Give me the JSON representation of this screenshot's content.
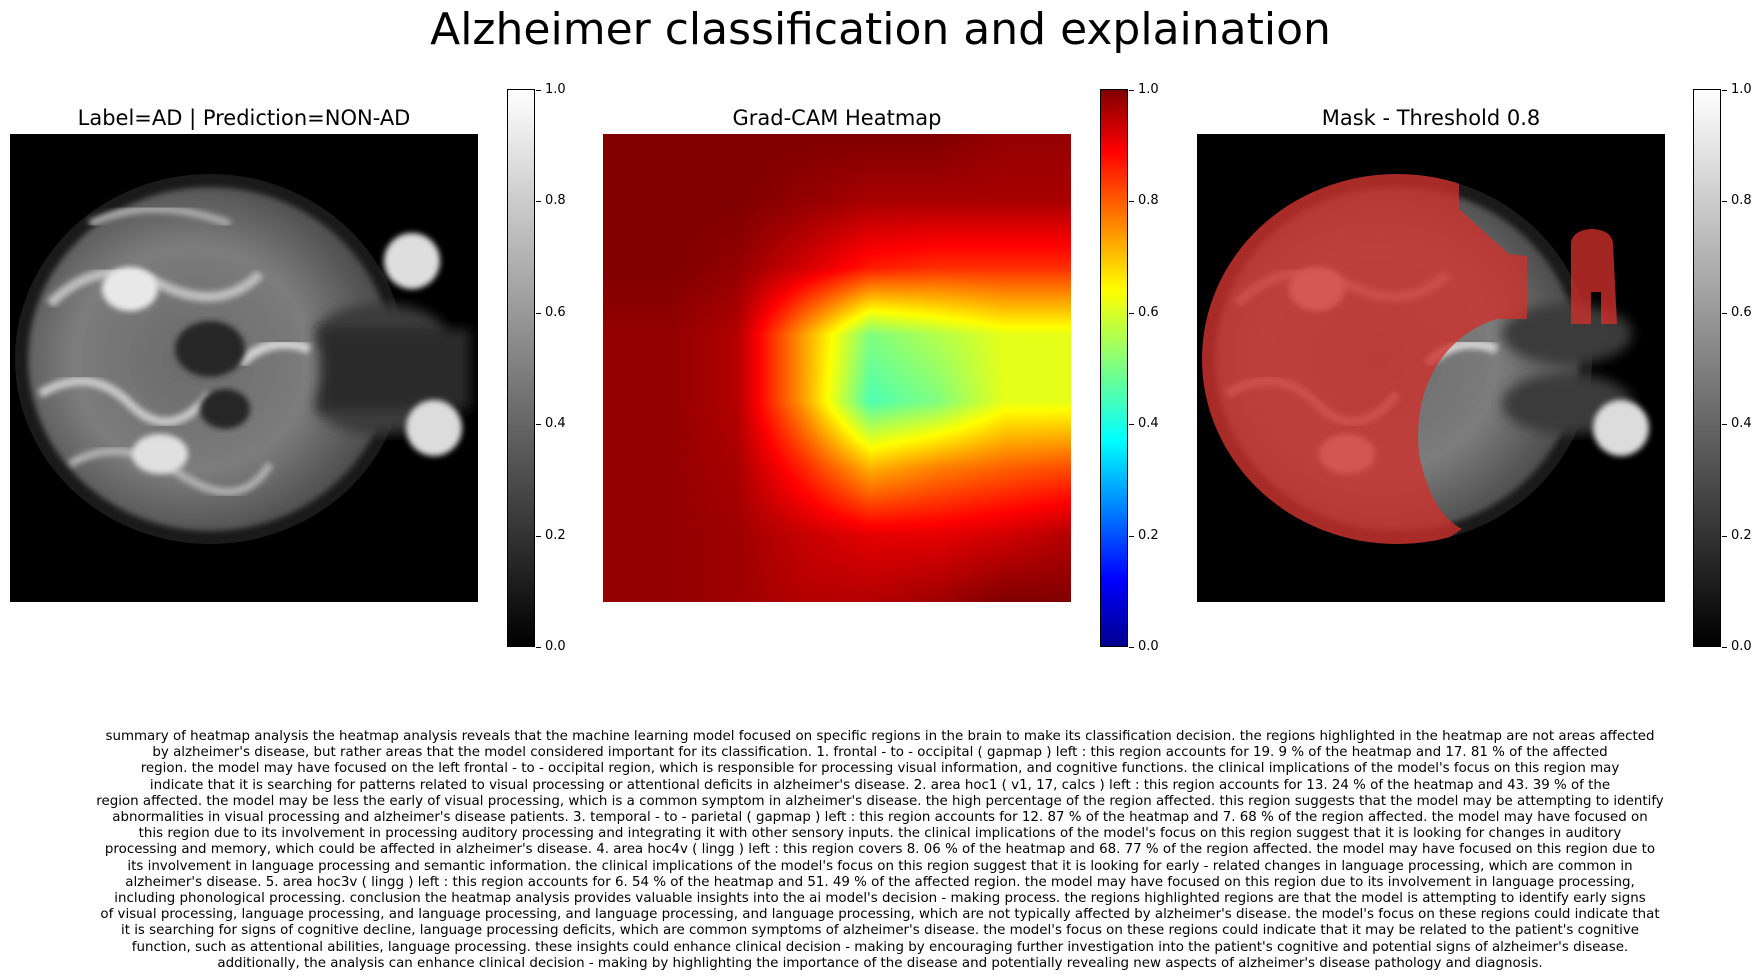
{
  "figure": {
    "title": "Alzheimer classification and explaination"
  },
  "panels": [
    {
      "title": "Label=AD | Prediction=NON-AD",
      "colormap": "gray"
    },
    {
      "title": "Grad-CAM Heatmap",
      "colormap": "jet"
    },
    {
      "title": "Mask - Threshold 0.8",
      "colormap": "gray",
      "overlay_color": "#d0302c"
    }
  ],
  "colorbar": {
    "range": [
      0.0,
      1.0
    ],
    "ticks": [
      "1.0",
      "0.8",
      "0.6",
      "0.4",
      "0.2",
      "0.0"
    ]
  },
  "chart_data": [
    {
      "type": "heatmap",
      "title": "Label=AD | Prediction=NON-AD",
      "description_kind": "grayscale axial MRI image",
      "colorbar": {
        "min": 0.0,
        "max": 1.0,
        "ticks": [
          0.0,
          0.2,
          0.4,
          0.6,
          0.8,
          1.0
        ],
        "cmap": "gray"
      }
    },
    {
      "type": "heatmap",
      "title": "Grad-CAM Heatmap",
      "colorbar": {
        "min": 0.0,
        "max": 1.0,
        "ticks": [
          0.0,
          0.2,
          0.4,
          0.6,
          0.8,
          1.0
        ],
        "cmap": "jet"
      },
      "approx_grid_values": [
        [
          1.0,
          1.0,
          1.0,
          1.0,
          1.0,
          1.0,
          0.98,
          0.98
        ],
        [
          1.0,
          1.0,
          1.0,
          0.98,
          0.96,
          0.96,
          0.96,
          0.96
        ],
        [
          1.0,
          1.0,
          0.98,
          0.92,
          0.85,
          0.83,
          0.83,
          0.83
        ],
        [
          0.98,
          0.98,
          0.95,
          0.72,
          0.5,
          0.55,
          0.6,
          0.6
        ],
        [
          0.98,
          0.98,
          0.95,
          0.72,
          0.45,
          0.5,
          0.6,
          0.6
        ],
        [
          0.98,
          0.98,
          0.96,
          0.84,
          0.7,
          0.75,
          0.78,
          0.8
        ],
        [
          0.98,
          0.98,
          0.97,
          0.93,
          0.9,
          0.9,
          0.92,
          0.95
        ],
        [
          0.98,
          0.98,
          0.97,
          0.95,
          0.95,
          0.97,
          1.0,
          1.0
        ]
      ]
    },
    {
      "type": "heatmap",
      "title": "Mask - Threshold 0.8",
      "threshold": 0.8,
      "colorbar": {
        "min": 0.0,
        "max": 1.0,
        "ticks": [
          0.0,
          0.2,
          0.4,
          0.6,
          0.8,
          1.0
        ],
        "cmap": "gray"
      }
    }
  ],
  "summary": "summary of heatmap analysis the heatmap analysis reveals that the machine learning model focused on specific regions in the brain to make its classification decision. the regions highlighted in the heatmap are not areas affected\nby alzheimer's disease, but rather areas that the model considered important for its classification. 1. frontal - to - occipital ( gapmap ) left : this region accounts for 19. 9 % of the heatmap and 17. 81 % of the affected\nregion. the model may have focused on the left frontal - to - occipital region, which is responsible for processing visual information, and cognitive functions. the clinical implications of the model's focus on this region may\nindicate that it is searching for patterns related to visual processing or attentional deficits in alzheimer's disease. 2. area hoc1 ( v1, 17, calcs ) left : this region accounts for 13. 24 % of the heatmap and 43. 39 % of the\nregion affected. the model may be less the early of visual processing, which is a common symptom in alzheimer's disease. the high percentage of the region affected. this region suggests that the model may be attempting to identify\nabnormalities in visual processing and alzheimer's disease patients. 3. temporal - to - parietal ( gapmap ) left : this region accounts for 12. 87 % of the heatmap and 7. 68 % of the region affected. the model may have focused on\nthis region due to its involvement in processing auditory processing and integrating it with other sensory inputs. the clinical implications of the model's focus on this region suggest that it is looking for changes in auditory\nprocessing and memory, which could be affected in alzheimer's disease. 4. area hoc4v ( lingg ) left : this region covers 8. 06 % of the heatmap and 68. 77 % of the region affected. the model may have focused on this region due to\nits involvement in language processing and semantic information. the clinical implications of the model's focus on this region suggest that it is looking for early - related changes in language processing, which are common in\nalzheimer's disease. 5. area hoc3v ( lingg ) left : this region accounts for 6. 54 % of the heatmap and 51. 49 % of the affected region. the model may have focused on this region due to its involvement in language processing,\nincluding phonological processing. conclusion the heatmap analysis provides valuable insights into the ai model's decision - making process. the regions highlighted regions are that the model is attempting to identify early signs\nof visual processing, language processing, and language processing, and language processing, and language processing, which are not typically affected by alzheimer's disease. the model's focus on these regions could indicate that\nit is searching for signs of cognitive decline, language processing deficits, which are common symptoms of alzheimer's disease. the model's focus on these regions could indicate that it may be related to the patient's cognitive\nfunction, such as attentional abilities, language processing. these insights could enhance clinical decision - making by encouraging further investigation into the patient's cognitive and potential signs of alzheimer's disease.\nadditionally, the analysis can enhance clinical decision - making by highlighting the importance of the disease and potentially revealing new aspects of alzheimer's disease pathology and diagnosis."
}
